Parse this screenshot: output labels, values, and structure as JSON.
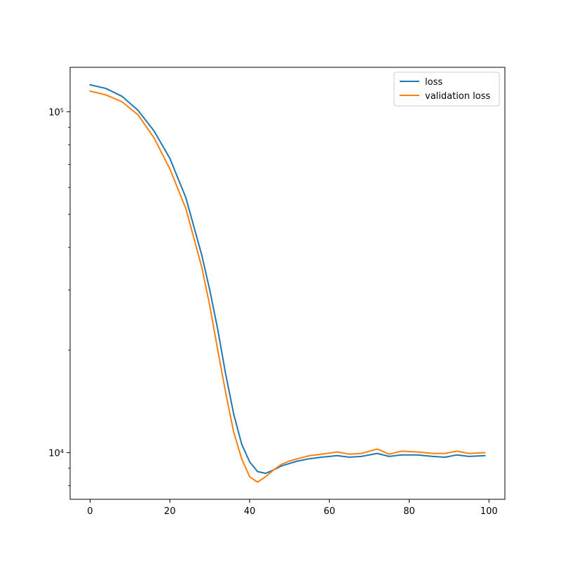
{
  "chart_data": {
    "type": "line",
    "title": "",
    "xlabel": "",
    "ylabel": "",
    "xlim": [
      -5,
      104
    ],
    "ylim": [
      7300,
      135000
    ],
    "yscale": "log",
    "grid": false,
    "legend_position": "top-right",
    "x_ticks": [
      0,
      20,
      40,
      60,
      80,
      100
    ],
    "x_tick_labels": [
      "0",
      "20",
      "40",
      "60",
      "80",
      "100"
    ],
    "y_ticks": [
      10000,
      100000
    ],
    "y_tick_labels": [
      "10⁴",
      "10⁵"
    ],
    "series": [
      {
        "name": "loss",
        "color": "#1f77b4",
        "points": [
          [
            0,
            120000
          ],
          [
            4,
            117000
          ],
          [
            8,
            111000
          ],
          [
            12,
            101000
          ],
          [
            16,
            88000
          ],
          [
            20,
            73000
          ],
          [
            24,
            56000
          ],
          [
            28,
            38000
          ],
          [
            30,
            30000
          ],
          [
            32,
            23000
          ],
          [
            34,
            17000
          ],
          [
            36,
            13000
          ],
          [
            38,
            10600
          ],
          [
            40,
            9400
          ],
          [
            42,
            8800
          ],
          [
            44,
            8700
          ],
          [
            46,
            8900
          ],
          [
            48,
            9150
          ],
          [
            50,
            9300
          ],
          [
            52,
            9450
          ],
          [
            55,
            9600
          ],
          [
            58,
            9700
          ],
          [
            62,
            9800
          ],
          [
            65,
            9700
          ],
          [
            68,
            9750
          ],
          [
            72,
            9950
          ],
          [
            75,
            9750
          ],
          [
            78,
            9850
          ],
          [
            82,
            9850
          ],
          [
            86,
            9750
          ],
          [
            89,
            9700
          ],
          [
            92,
            9850
          ],
          [
            95,
            9750
          ],
          [
            99,
            9800
          ]
        ]
      },
      {
        "name": "validation loss",
        "color": "#ff7f0e",
        "points": [
          [
            0,
            115000
          ],
          [
            4,
            112000
          ],
          [
            8,
            107000
          ],
          [
            12,
            98000
          ],
          [
            16,
            84000
          ],
          [
            20,
            68000
          ],
          [
            24,
            52000
          ],
          [
            28,
            35000
          ],
          [
            30,
            27000
          ],
          [
            32,
            20000
          ],
          [
            34,
            15000
          ],
          [
            36,
            11500
          ],
          [
            38,
            9600
          ],
          [
            40,
            8500
          ],
          [
            42,
            8200
          ],
          [
            44,
            8500
          ],
          [
            46,
            8900
          ],
          [
            48,
            9250
          ],
          [
            50,
            9450
          ],
          [
            52,
            9600
          ],
          [
            55,
            9800
          ],
          [
            58,
            9900
          ],
          [
            62,
            10050
          ],
          [
            65,
            9900
          ],
          [
            68,
            9950
          ],
          [
            72,
            10250
          ],
          [
            75,
            9900
          ],
          [
            78,
            10100
          ],
          [
            82,
            10050
          ],
          [
            86,
            9950
          ],
          [
            89,
            9950
          ],
          [
            92,
            10100
          ],
          [
            95,
            9950
          ],
          [
            99,
            10000
          ]
        ]
      }
    ]
  }
}
